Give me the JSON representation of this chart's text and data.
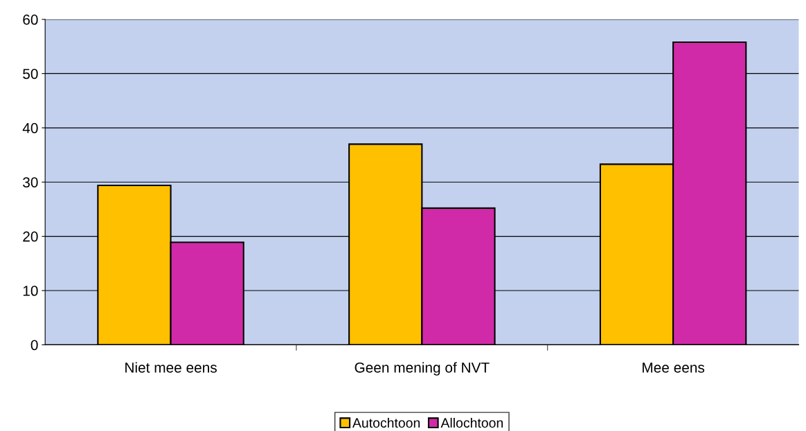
{
  "chart_data": {
    "type": "bar",
    "categories": [
      "Niet mee eens",
      "Geen mening of NVT",
      "Mee eens"
    ],
    "series": [
      {
        "name": "Autochtoon",
        "color": "#ffc000",
        "values": [
          29.4,
          37.0,
          33.3
        ]
      },
      {
        "name": "Allochtoon",
        "color": "#d12aa8",
        "values": [
          18.9,
          25.2,
          55.8
        ]
      }
    ],
    "ylim": [
      0,
      60
    ],
    "yticks": [
      0,
      10,
      20,
      30,
      40,
      50,
      60
    ],
    "grid": "y",
    "legend": "bottom"
  }
}
